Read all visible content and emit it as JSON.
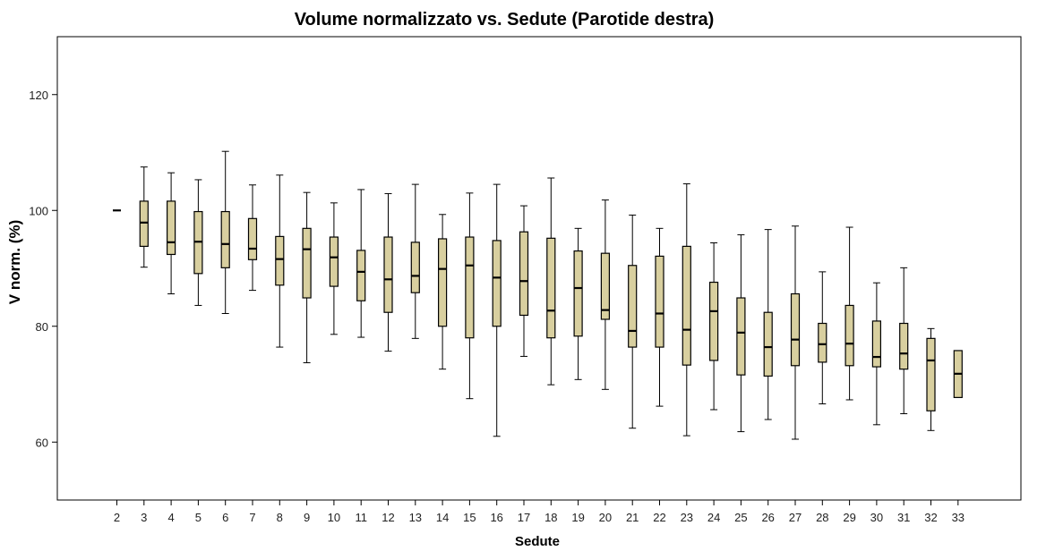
{
  "chart_data": {
    "type": "boxplot",
    "title": "Volume normalizzato vs. Sedute (Parotide destra)",
    "xlabel": "Sedute",
    "ylabel": "V norm. (%)",
    "ylim": [
      50,
      130
    ],
    "yticks": [
      60,
      80,
      100,
      120
    ],
    "grid": false,
    "box_color": "#d8cf9f",
    "categories": [
      "2",
      "3",
      "4",
      "5",
      "6",
      "7",
      "8",
      "9",
      "10",
      "11",
      "12",
      "13",
      "14",
      "15",
      "16",
      "17",
      "18",
      "19",
      "20",
      "21",
      "22",
      "23",
      "24",
      "25",
      "26",
      "27",
      "28",
      "29",
      "30",
      "31",
      "32",
      "33"
    ],
    "boxes": [
      {
        "x": "2",
        "min": 100,
        "q1": 100,
        "median": 100,
        "q3": 100,
        "max": 100
      },
      {
        "x": "3",
        "min": 90.2,
        "q1": 93.8,
        "median": 97.9,
        "q3": 101.6,
        "max": 107.5
      },
      {
        "x": "4",
        "min": 85.6,
        "q1": 92.4,
        "median": 94.5,
        "q3": 101.6,
        "max": 106.5
      },
      {
        "x": "5",
        "min": 83.6,
        "q1": 89.1,
        "median": 94.6,
        "q3": 99.8,
        "max": 105.3
      },
      {
        "x": "6",
        "min": 82.2,
        "q1": 90.1,
        "median": 94.2,
        "q3": 99.8,
        "max": 110.2
      },
      {
        "x": "7",
        "min": 86.2,
        "q1": 91.5,
        "median": 93.4,
        "q3": 98.6,
        "max": 104.4
      },
      {
        "x": "8",
        "min": 76.4,
        "q1": 87.1,
        "median": 91.6,
        "q3": 95.5,
        "max": 106.1
      },
      {
        "x": "9",
        "min": 73.7,
        "q1": 84.9,
        "median": 93.3,
        "q3": 96.9,
        "max": 103.1
      },
      {
        "x": "10",
        "min": 78.6,
        "q1": 86.9,
        "median": 91.9,
        "q3": 95.4,
        "max": 101.3
      },
      {
        "x": "11",
        "min": 78.1,
        "q1": 84.4,
        "median": 89.4,
        "q3": 93.1,
        "max": 103.6
      },
      {
        "x": "12",
        "min": 75.7,
        "q1": 82.4,
        "median": 88.1,
        "q3": 95.4,
        "max": 102.9
      },
      {
        "x": "13",
        "min": 77.9,
        "q1": 85.8,
        "median": 88.7,
        "q3": 94.5,
        "max": 104.5
      },
      {
        "x": "14",
        "min": 72.6,
        "q1": 80.0,
        "median": 89.9,
        "q3": 95.1,
        "max": 99.3
      },
      {
        "x": "15",
        "min": 67.5,
        "q1": 78.0,
        "median": 90.5,
        "q3": 95.4,
        "max": 103.0
      },
      {
        "x": "16",
        "min": 61.0,
        "q1": 80.0,
        "median": 88.4,
        "q3": 94.8,
        "max": 104.5
      },
      {
        "x": "17",
        "min": 74.8,
        "q1": 81.9,
        "median": 87.8,
        "q3": 96.3,
        "max": 100.8
      },
      {
        "x": "18",
        "min": 69.9,
        "q1": 78.0,
        "median": 82.7,
        "q3": 95.2,
        "max": 105.6
      },
      {
        "x": "19",
        "min": 70.8,
        "q1": 78.3,
        "median": 86.6,
        "q3": 93.0,
        "max": 96.9
      },
      {
        "x": "20",
        "min": 69.1,
        "q1": 81.2,
        "median": 82.8,
        "q3": 92.6,
        "max": 101.8
      },
      {
        "x": "21",
        "min": 62.4,
        "q1": 76.4,
        "median": 79.2,
        "q3": 90.5,
        "max": 99.2
      },
      {
        "x": "22",
        "min": 66.2,
        "q1": 76.4,
        "median": 82.2,
        "q3": 92.1,
        "max": 96.9
      },
      {
        "x": "23",
        "min": 61.1,
        "q1": 73.3,
        "median": 79.4,
        "q3": 93.8,
        "max": 104.6
      },
      {
        "x": "24",
        "min": 65.6,
        "q1": 74.1,
        "median": 82.6,
        "q3": 87.6,
        "max": 94.4
      },
      {
        "x": "25",
        "min": 61.8,
        "q1": 71.6,
        "median": 78.9,
        "q3": 84.9,
        "max": 95.8
      },
      {
        "x": "26",
        "min": 63.9,
        "q1": 71.4,
        "median": 76.4,
        "q3": 82.4,
        "max": 96.7
      },
      {
        "x": "27",
        "min": 60.5,
        "q1": 73.2,
        "median": 77.7,
        "q3": 85.6,
        "max": 97.3
      },
      {
        "x": "28",
        "min": 66.6,
        "q1": 73.8,
        "median": 76.9,
        "q3": 80.5,
        "max": 89.4
      },
      {
        "x": "29",
        "min": 67.3,
        "q1": 73.2,
        "median": 77.0,
        "q3": 83.6,
        "max": 97.1
      },
      {
        "x": "30",
        "min": 63.0,
        "q1": 73.0,
        "median": 74.7,
        "q3": 80.9,
        "max": 87.5
      },
      {
        "x": "31",
        "min": 64.9,
        "q1": 72.6,
        "median": 75.3,
        "q3": 80.5,
        "max": 90.1
      },
      {
        "x": "32",
        "min": 62.0,
        "q1": 65.4,
        "median": 74.1,
        "q3": 77.9,
        "max": 79.6
      },
      {
        "x": "33",
        "min": 67.7,
        "q1": 67.7,
        "median": 71.8,
        "q3": 75.8,
        "max": 75.8
      }
    ]
  }
}
